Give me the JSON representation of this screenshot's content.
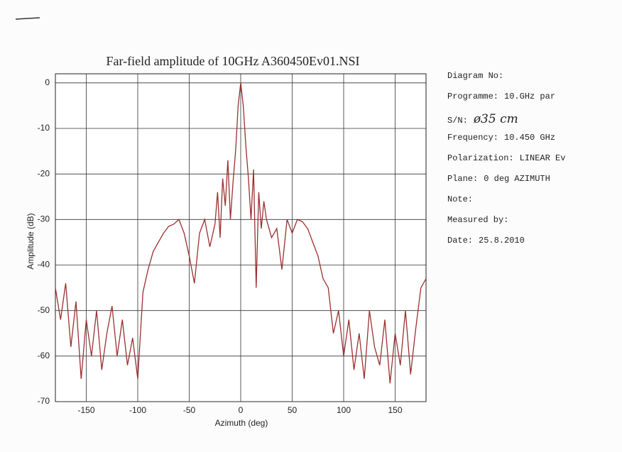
{
  "chart_data": {
    "type": "line",
    "title": "Far-field amplitude of 10GHz A360450Ev01.NSI",
    "x_label": "Azimuth (deg)",
    "y_label": "Amplitude (dB)",
    "xlim": [
      -180,
      180
    ],
    "ylim": [
      -70,
      2
    ],
    "xticks": [
      -150,
      -100,
      -50,
      0,
      50,
      100,
      150
    ],
    "yticks": [
      0,
      -10,
      -20,
      -30,
      -40,
      -50,
      -60,
      -70
    ],
    "grid": true,
    "x": [
      -180,
      -175,
      -170,
      -165,
      -160,
      -155,
      -150,
      -145,
      -140,
      -135,
      -130,
      -125,
      -120,
      -115,
      -110,
      -105,
      -100,
      -95,
      -90,
      -85,
      -80,
      -75,
      -70,
      -65,
      -60,
      -55,
      -50,
      -45,
      -40,
      -35,
      -30,
      -25,
      -22.5,
      -20,
      -17.5,
      -15,
      -12.5,
      -10,
      -7.5,
      -5,
      -2.5,
      0,
      2.5,
      5,
      7.5,
      10,
      12.5,
      15,
      17.5,
      20,
      22.5,
      25,
      30,
      35,
      40,
      45,
      50,
      55,
      60,
      65,
      70,
      75,
      80,
      85,
      90,
      95,
      100,
      105,
      110,
      115,
      120,
      125,
      130,
      135,
      140,
      145,
      150,
      155,
      160,
      165,
      170,
      175,
      180
    ],
    "series": [
      {
        "color": "#9b2f2f",
        "values": [
          -45,
          -52,
          -44,
          -58,
          -48,
          -65,
          -52,
          -60,
          -50,
          -63,
          -55,
          -49,
          -60,
          -52,
          -62,
          -56,
          -65,
          -46,
          -41,
          -37,
          -35,
          -33,
          -31.5,
          -31,
          -30,
          -33,
          -38,
          -44,
          -33,
          -30,
          -36,
          -31,
          -24,
          -34,
          -21,
          -27,
          -17,
          -30,
          -22,
          -15,
          -5,
          0,
          -5,
          -14,
          -21,
          -30,
          -19,
          -45,
          -24,
          -32,
          -26,
          -30,
          -34,
          -32,
          -41,
          -30,
          -33,
          -30,
          -30.5,
          -32,
          -35,
          -38,
          -43,
          -45,
          -55,
          -50,
          -60,
          -52,
          -63,
          -55,
          -65,
          -50,
          -58,
          -62,
          -52,
          -66,
          -55,
          -62,
          -50,
          -64,
          -54,
          -45,
          -43
        ]
      }
    ]
  },
  "info": [
    {
      "label": "Diagram No:"
    },
    {
      "label": "Programme:",
      "value": "10.GHz par"
    },
    {
      "label": "S/N:",
      "value": "ø35 cm"
    },
    {
      "label": "Frequency:",
      "value": "10.450 GHz"
    },
    {
      "label": "Polarization:",
      "value": "LINEAR Ev"
    },
    {
      "label": "Plane:",
      "value": "0 deg AZIMUTH"
    },
    {
      "label": "Note:"
    },
    {
      "label": "Measured by:"
    },
    {
      "label": "Date:",
      "value": "25.8.2010"
    }
  ]
}
